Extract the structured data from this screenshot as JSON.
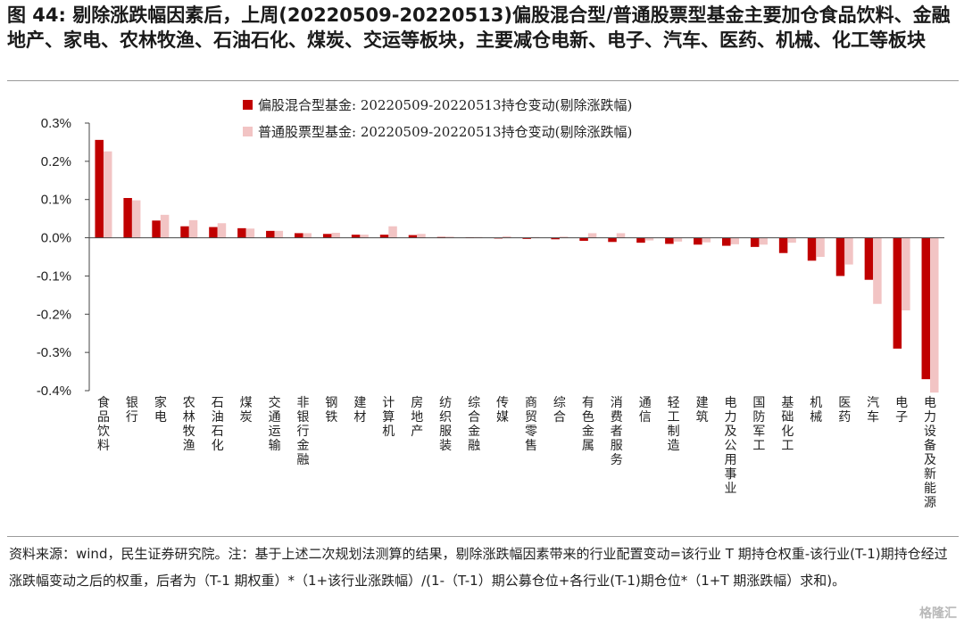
{
  "title": "图 44: 剔除涨跌幅因素后，上周(20220509-20220513)偏股混合型/普通股票型基金主要加仓食品饮料、金融地产、家电、农林牧渔、石油石化、煤炭、交运等板块，主要减仓电新、电子、汽车、医药、机械、化工等板块",
  "note": "资料来源：wind，民生证券研究院。注：基于上述二次规划法测算的结果，剔除涨跌幅因素带来的行业配置变动=该行业 T 期持仓权重-该行业(T-1)期持仓经过涨跌幅变动之后的权重，后者为（T-1 期权重）*（1+该行业涨跌幅）/(1-（T-1）期公募仓位+各行业(T-1)期仓位*（1+T 期涨跌幅）求和)。",
  "watermark": "格隆汇",
  "chart_data": {
    "type": "bar",
    "categories": [
      "食品饮料",
      "银行",
      "家电",
      "农林牧渔",
      "石油石化",
      "煤炭",
      "交通运输",
      "非银行金融",
      "钢铁",
      "建材",
      "计算机",
      "房地产",
      "纺织服装",
      "综合金融",
      "传媒",
      "商贸零售",
      "综合",
      "有色金属",
      "消费者服务",
      "通信",
      "轻工制造",
      "建筑",
      "电力及公用事业",
      "国防军工",
      "基础化工",
      "机械",
      "医药",
      "汽车",
      "电子",
      "电力设备及新能源"
    ],
    "series": [
      {
        "name": "偏股混合型基金:  20220509-20220513持仓变动(剔除涨跌幅)",
        "color": "#c00000",
        "values": [
          0.256,
          0.104,
          0.045,
          0.03,
          0.028,
          0.025,
          0.018,
          0.012,
          0.01,
          0.008,
          0.008,
          0.007,
          0.002,
          0.001,
          -0.002,
          -0.003,
          -0.004,
          -0.008,
          -0.011,
          -0.013,
          -0.016,
          -0.018,
          -0.021,
          -0.024,
          -0.04,
          -0.06,
          -0.1,
          -0.11,
          -0.29,
          -0.37
        ]
      },
      {
        "name": "普通股票型基金:  20220509-20220513持仓变动(剔除涨跌幅)",
        "color": "#f2c4c4",
        "values": [
          0.226,
          0.098,
          0.06,
          0.046,
          0.038,
          0.024,
          0.018,
          0.012,
          0.013,
          0.008,
          0.03,
          0.01,
          0.003,
          0.002,
          0.004,
          0.002,
          0.003,
          0.012,
          0.012,
          -0.007,
          -0.01,
          -0.012,
          -0.017,
          -0.018,
          -0.013,
          -0.05,
          -0.07,
          -0.173,
          -0.19,
          -0.405
        ]
      }
    ],
    "yticks": [
      "0.3%",
      "0.2%",
      "0.1%",
      "0.0%",
      "-0.1%",
      "-0.2%",
      "-0.3%",
      "-0.4%"
    ],
    "ylim": [
      -0.4,
      0.3
    ],
    "legend_position": "top-center"
  }
}
